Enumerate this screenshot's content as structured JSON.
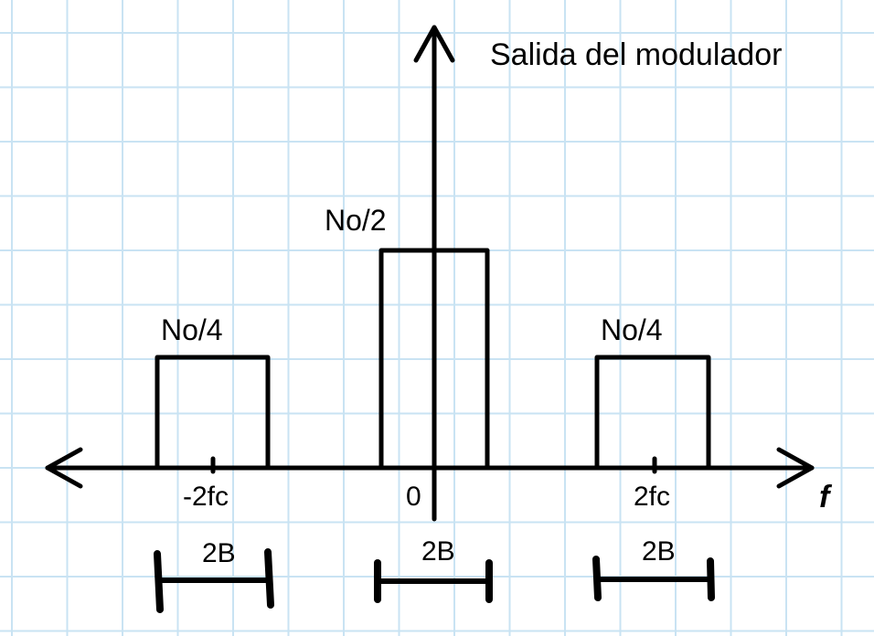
{
  "title": "Salida del modulador",
  "axis": {
    "x_label": "f"
  },
  "pulses": [
    {
      "id": "left",
      "height_label": "No/4",
      "center_label": "-2fc",
      "width_label": "2B",
      "level": 0.25
    },
    {
      "id": "center",
      "height_label": "No/2",
      "center_label": "0",
      "width_label": "2B",
      "level": 0.5
    },
    {
      "id": "right",
      "height_label": "No/4",
      "center_label": "2fc",
      "width_label": "2B",
      "level": 0.25
    }
  ],
  "colors": {
    "grid": "#c9e3f3",
    "ink": "#000000",
    "background": "#ffffff"
  }
}
